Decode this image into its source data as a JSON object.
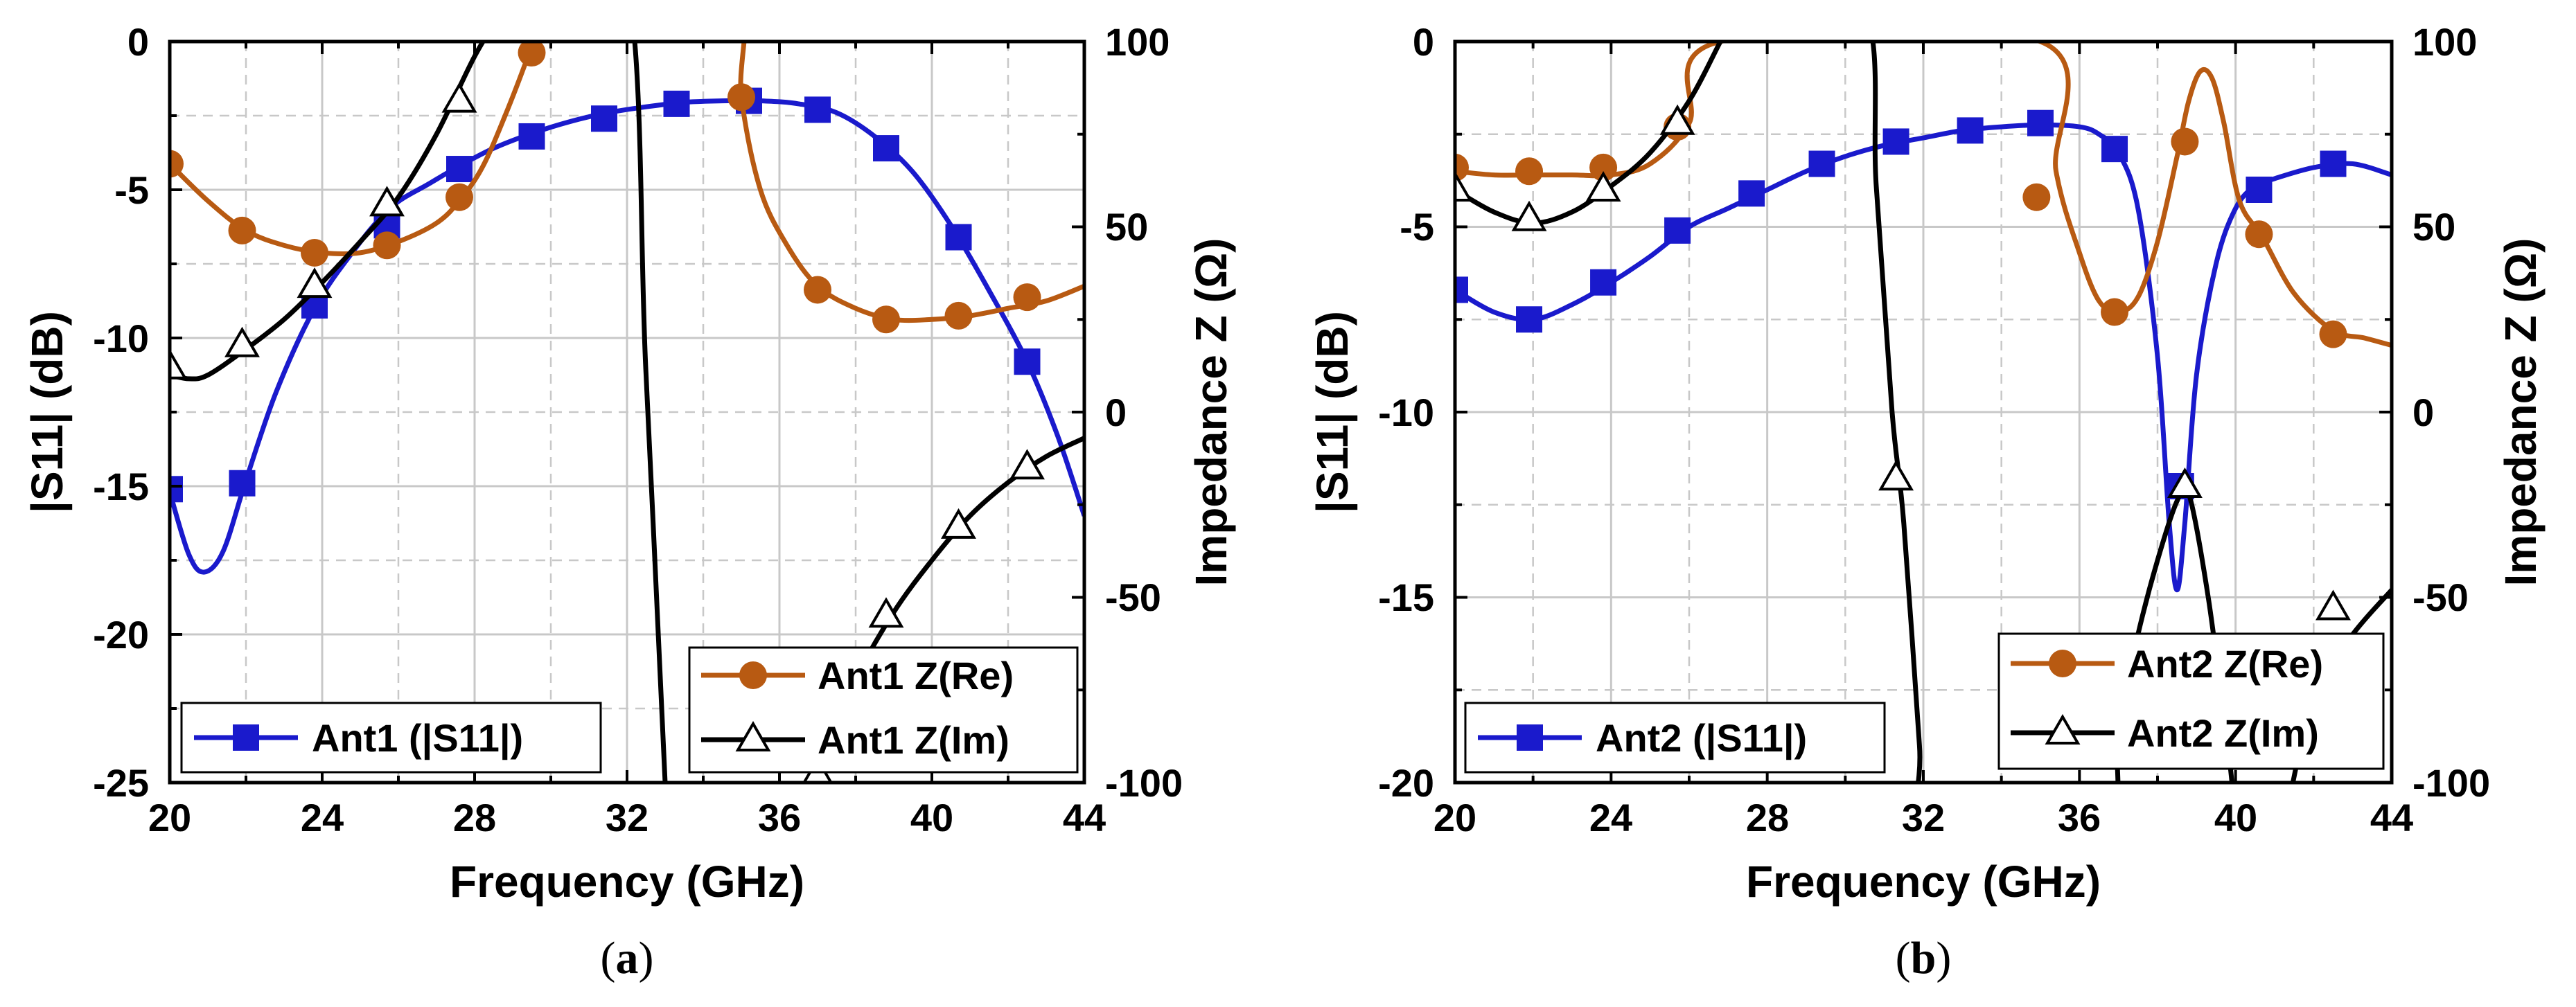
{
  "colors": {
    "s11": "#1a1acc",
    "zre": "#b85a12",
    "zim": "#000000",
    "grid": "#c8c8c8"
  },
  "chart_data": [
    {
      "type": "line",
      "panel": "a",
      "caption": "(a)",
      "xlabel": "Frequency (GHz)",
      "ylabel_left": "|S11| (dB)",
      "ylabel_right": "Impedance Z (Ω)",
      "xlim": [
        20,
        44
      ],
      "ylim_left": [
        -25,
        0
      ],
      "ylim_right": [
        -100,
        100
      ],
      "xticks": [
        "20",
        "24",
        "28",
        "32",
        "36",
        "40",
        "44"
      ],
      "yticks_left": [
        "0",
        "-5",
        "-10",
        "-15",
        "-20",
        "-25"
      ],
      "yticks_right": [
        "100",
        "50",
        "0",
        "-50",
        "-100"
      ],
      "grid": true,
      "series": [
        {
          "name": "Ant1 (|S11|)",
          "axis": "left",
          "color_key": "s11",
          "marker": "square",
          "x": [
            20,
            20.5,
            20.9,
            21.4,
            22,
            22.8,
            23.8,
            24.8,
            25.8,
            26.8,
            27.6,
            28.5,
            29.5,
            30.5,
            31.5,
            32.5,
            33.5,
            34.5,
            35.5,
            36.5,
            37.5,
            38.5,
            39.5,
            40.5,
            41.5,
            42.5,
            43.3,
            44
          ],
          "y": [
            -15.2,
            -17.3,
            -17.9,
            -17.2,
            -14.8,
            -11.8,
            -9.0,
            -7.1,
            -5.6,
            -4.8,
            -4.2,
            -3.6,
            -3.1,
            -2.7,
            -2.4,
            -2.2,
            -2.05,
            -2.0,
            -2.0,
            -2.1,
            -2.4,
            -3.2,
            -4.4,
            -6.2,
            -8.4,
            -10.8,
            -13.3,
            -16.0
          ],
          "marker_x": [
            20,
            21.9,
            23.8,
            25.7,
            27.6,
            29.5,
            31.4,
            33.3,
            35.2,
            37,
            38.8,
            40.7,
            42.5
          ],
          "marker_y": [
            -15.1,
            -14.9,
            -8.9,
            -6.2,
            -4.3,
            -3.2,
            -2.6,
            -2.1,
            -2.0,
            -2.3,
            -3.6,
            -6.6,
            -10.8
          ]
        },
        {
          "name": "Ant1 Z(Re)",
          "axis": "right",
          "color_key": "zre",
          "marker": "circle",
          "x": [
            20,
            21,
            22,
            23,
            24,
            25,
            26,
            27,
            27.6,
            28.2,
            28.8,
            29.4,
            29.8,
            30.1,
            34.7,
            35.0,
            35.5,
            36.2,
            37.0,
            38.0,
            39.0,
            40.0,
            41.0,
            42.0,
            43.0,
            44.0
          ],
          "y": [
            67,
            57,
            49,
            45,
            43,
            43,
            46,
            51,
            57,
            66,
            80,
            96,
            108,
            120,
            120,
            85,
            60,
            45,
            34,
            28,
            25,
            25,
            26,
            28,
            30,
            34
          ],
          "marker_x": [
            20,
            21.9,
            23.8,
            25.7,
            27.6,
            29.5,
            35.0,
            37.0,
            38.8,
            40.7,
            42.5
          ],
          "marker_y": [
            67,
            49,
            43,
            45,
            58,
            97,
            85,
            33,
            25,
            26,
            31
          ]
        },
        {
          "name": "Ant1 Z(Im)",
          "axis": "right",
          "color_key": "zim",
          "marker": "triangle-open",
          "x": [
            20,
            20.5,
            21,
            22,
            23,
            24,
            25,
            26,
            27,
            28,
            28.8,
            29.2,
            31.9,
            32.5,
            33.0,
            33.2,
            36.0,
            37,
            38,
            39,
            40,
            41,
            42,
            43,
            44
          ],
          "y": [
            10,
            9,
            10,
            17,
            25,
            35,
            46,
            58,
            75,
            96,
            110,
            120,
            120,
            10,
            -100,
            -120,
            -120,
            -95,
            -72,
            -54,
            -40,
            -28,
            -19,
            -12,
            -7
          ],
          "marker_x": [
            20,
            21.9,
            23.8,
            25.7,
            27.6,
            37.0,
            38.8,
            40.7,
            42.5
          ],
          "marker_y": [
            12,
            18,
            34,
            56,
            84,
            -98,
            -55,
            -31,
            -15
          ]
        }
      ],
      "legend_left": {
        "position": "bottom-left",
        "entries": [
          "Ant1 (|S11|)"
        ]
      },
      "legend_right": {
        "position": "bottom-right",
        "entries": [
          "Ant1 Z(Re)",
          "Ant1 Z(Im)"
        ]
      }
    },
    {
      "type": "line",
      "panel": "b",
      "caption": "(b)",
      "xlabel": "Frequency (GHz)",
      "ylabel_left": "|S11| (dB)",
      "ylabel_right": "Impedance Z (Ω)",
      "xlim": [
        20,
        44
      ],
      "ylim_left": [
        -20,
        0
      ],
      "ylim_right": [
        -100,
        100
      ],
      "xticks": [
        "20",
        "24",
        "28",
        "32",
        "36",
        "40",
        "44"
      ],
      "yticks_left": [
        "0",
        "-5",
        "-10",
        "-15",
        "-20"
      ],
      "yticks_right": [
        "100",
        "50",
        "0",
        "-50",
        "-100"
      ],
      "grid": true,
      "series": [
        {
          "name": "Ant2 (|S11|)",
          "axis": "left",
          "color_key": "s11",
          "marker": "square",
          "x": [
            20,
            21,
            22,
            23,
            24,
            25,
            26,
            27,
            28,
            29,
            30,
            31,
            32,
            33,
            34,
            35,
            36,
            36.5,
            37,
            37.5,
            38,
            38.3,
            38.5,
            38.7,
            39,
            39.5,
            40,
            40.5,
            41,
            42,
            43,
            44
          ],
          "y": [
            -6.7,
            -7.3,
            -7.5,
            -7.1,
            -6.5,
            -5.8,
            -5.0,
            -4.5,
            -4.0,
            -3.5,
            -3.1,
            -2.8,
            -2.6,
            -2.4,
            -2.3,
            -2.25,
            -2.3,
            -2.5,
            -3.0,
            -4.5,
            -8.5,
            -13,
            -14.8,
            -13,
            -9,
            -6,
            -4.5,
            -3.9,
            -3.7,
            -3.4,
            -3.3,
            -3.6
          ],
          "marker_x": [
            20,
            21.9,
            23.8,
            25.7,
            27.6,
            29.4,
            31.3,
            33.2,
            35.0,
            36.9,
            38.6,
            40.6,
            42.5
          ],
          "marker_y": [
            -6.7,
            -7.5,
            -6.5,
            -5.1,
            -4.1,
            -3.3,
            -2.7,
            -2.4,
            -2.2,
            -2.9,
            -12.0,
            -4.0,
            -3.3
          ]
        },
        {
          "name": "Ant2 Z(Re)",
          "axis": "right",
          "color_key": "zre",
          "marker": "circle",
          "x": [
            20,
            21,
            22,
            23,
            24,
            25,
            26,
            26.8,
            35.0,
            35.4,
            36,
            36.5,
            37.0,
            37.5,
            38.0,
            38.5,
            38.8,
            39.1,
            39.4,
            39.7,
            40.1,
            40.7,
            41.5,
            42.5,
            43.3,
            44
          ],
          "y": [
            65,
            64,
            64,
            64,
            64,
            67,
            78,
            100,
            100,
            65,
            43,
            30,
            27,
            31,
            46,
            69,
            84,
            92,
            90,
            78,
            57,
            47,
            32,
            22,
            20,
            18
          ],
          "marker_x": [
            20,
            21.9,
            23.8,
            25.7,
            34.9,
            36.9,
            38.7,
            40.6,
            42.5
          ],
          "marker_y": [
            66,
            65,
            66,
            77,
            58,
            27,
            73,
            48,
            21
          ]
        },
        {
          "name": "Ant2 Z(Im)",
          "axis": "right",
          "color_key": "zim",
          "marker": "triangle-open",
          "x": [
            20,
            21,
            22,
            23,
            24,
            25,
            26,
            26.8,
            27.3,
            30.4,
            30.8,
            31.2,
            31.5,
            31.9,
            32.1,
            36.5,
            37,
            37.5,
            38,
            38.5,
            38.8,
            39.3,
            39.8,
            40.2,
            41,
            42,
            43,
            44
          ],
          "y": [
            60,
            54,
            51,
            54,
            61,
            70,
            84,
            100,
            110,
            110,
            60,
            0,
            -30,
            -90,
            -120,
            -120,
            -85,
            -60,
            -40,
            -24,
            -22,
            -50,
            -90,
            -120,
            -120,
            -76,
            -60,
            -48
          ],
          "marker_x": [
            20,
            21.9,
            23.8,
            25.7,
            31.3,
            38.7,
            42.5
          ],
          "marker_y": [
            60,
            52,
            60,
            78,
            -18,
            -20,
            -53
          ]
        }
      ],
      "legend_left": {
        "position": "bottom-left",
        "entries": [
          "Ant2 (|S11|)"
        ]
      },
      "legend_right": {
        "position": "bottom-right",
        "entries": [
          "Ant2 Z(Re)",
          "Ant2 Z(Im)"
        ]
      }
    }
  ]
}
